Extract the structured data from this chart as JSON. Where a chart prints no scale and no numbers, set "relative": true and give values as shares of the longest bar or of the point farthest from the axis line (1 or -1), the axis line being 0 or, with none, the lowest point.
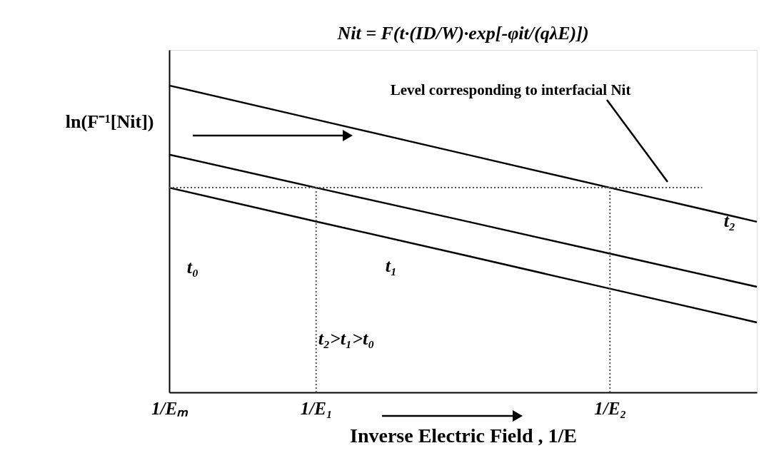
{
  "chart_data": {
    "type": "line",
    "relative": true,
    "title": "Nit = F(t·(ID/W)·exp[-φit/(qλE)])",
    "xlabel": "Inverse Electric Field , 1/E",
    "ylabel": "ln(F⁻¹[Nit])",
    "categories": [
      "1/Eₘ",
      "1/E₁",
      null,
      "1/E₂",
      null
    ],
    "tick_labels": "x",
    "grid": false,
    "series": [
      {
        "color": "#000000",
        "line_style": "solid",
        "values": [
          1,
          0.889,
          0.778,
          0.667,
          0.556
        ]
      },
      {
        "color": "#000000",
        "line_style": "solid",
        "values": [
          0.775,
          0.667,
          0.56,
          0.452,
          0.344
        ]
      },
      {
        "color": "#000000",
        "line_style": "solid",
        "values": [
          0.667,
          0.557,
          0.448,
          0.338,
          0.228
        ]
      }
    ],
    "ref_lines": [
      {
        "axis": "y",
        "value": 0.667,
        "label": "Level corresponding to interfacial  Nit",
        "line_style": "dotted",
        "color": "#555555"
      },
      {
        "axis": "x",
        "value": "1/E₁",
        "line_style": "dotted",
        "color": "#555555"
      },
      {
        "axis": "x",
        "value": "1/E₂",
        "line_style": "dotted",
        "color": "#555555"
      }
    ],
    "annotations": [
      "t₀",
      "t₁",
      "t₂",
      "t₂>t₁>t₀"
    ]
  }
}
